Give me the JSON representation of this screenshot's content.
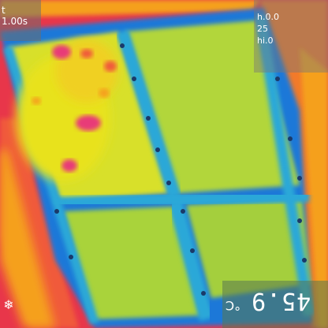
{
  "overlays": {
    "top_left": {
      "line1": "t",
      "line2": "1.00s"
    },
    "top_right": {
      "line1": "h.0.0",
      "line2": "25",
      "line3": "hi.0"
    },
    "bottom_left_icon": "snowflake-icon",
    "bottom_right": {
      "temperature": "45.9",
      "unit": "°C"
    }
  },
  "colors": {
    "hot_red": "#f0354a",
    "hot_magenta": "#e83a78",
    "warm_orange": "#f5a01c",
    "warm_yellow": "#e8e21c",
    "mid_green": "#a8d23a",
    "cool_cyan": "#2aa8d8",
    "cold_blue": "#1c78d8"
  }
}
